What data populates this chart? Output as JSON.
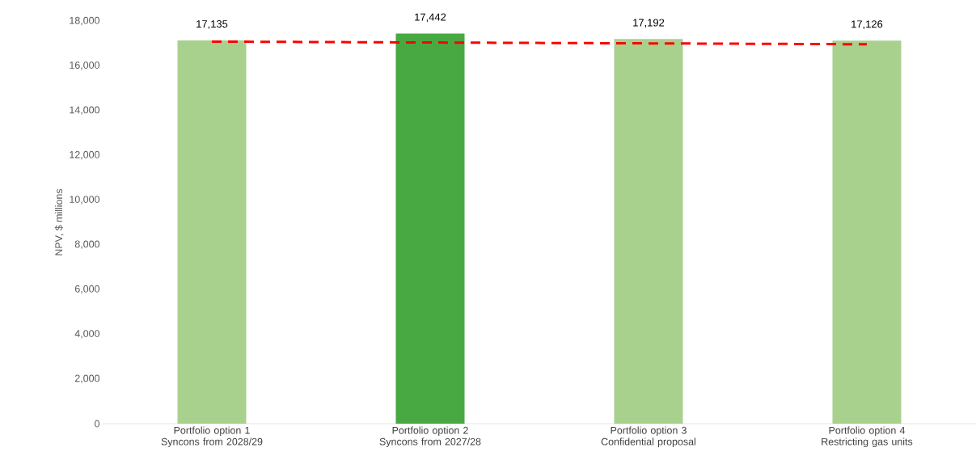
{
  "chart_data": {
    "type": "bar",
    "ylabel": "NPV, $ millions",
    "categories": [
      "Portfolio option 1 Syncons from 2028/29",
      "Portfolio option 2 Syncons from 2027/28",
      "Portfolio option 3 Confidential proposal",
      "Portfolio option 4 Restricting gas units"
    ],
    "series": [
      {
        "values": [
          17135,
          17442,
          17192,
          17126
        ],
        "value_labels": [
          "17,135",
          "17,442",
          "17,192",
          "17,126"
        ],
        "colors": [
          "#a9d18e",
          "#48a942",
          "#a9d18e",
          "#a9d18e"
        ]
      },
      {
        "type": "line",
        "values": [
          17080,
          17040,
          17000,
          16960
        ],
        "color": "#ff0000",
        "line_style": "dashed",
        "marker": "none"
      }
    ],
    "ylim": [
      0,
      18000
    ],
    "yticks": [
      0,
      {
        "value": 2000,
        "label": "2,000"
      },
      {
        "value": 4000,
        "label": "4,000"
      },
      {
        "value": 6000,
        "label": "6,000"
      },
      {
        "value": 8000,
        "label": "8,000"
      },
      {
        "value": 10000,
        "label": "10,000"
      },
      {
        "value": 12000,
        "label": "12,000"
      },
      {
        "value": 14000,
        "label": "14,000"
      },
      {
        "value": 16000,
        "label": "16,000"
      },
      {
        "value": 18000,
        "label": "18,000"
      }
    ],
    "grid": false,
    "legend": false
  }
}
